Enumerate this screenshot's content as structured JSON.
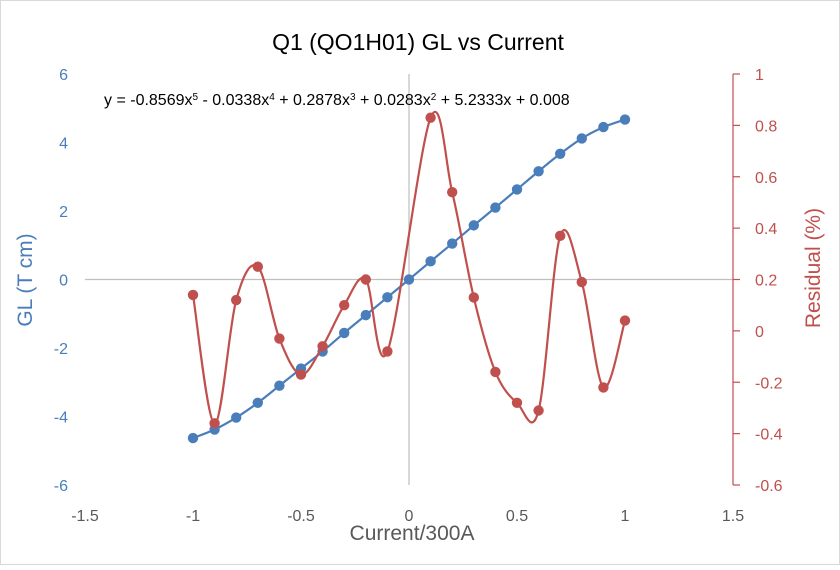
{
  "chart_data": {
    "type": "scatter",
    "title": "Q1 (QO1H01) GL vs Current",
    "xlabel": "Current/300A",
    "ylabel": "GL (T cm)",
    "y2label": "Residual (%)",
    "xlim": [
      -1.5,
      1.5
    ],
    "ylim": [
      -6,
      6
    ],
    "y2lim": [
      -0.6,
      1
    ],
    "x_ticks": [
      "-1.5",
      "-1",
      "-0.5",
      "0",
      "0.5",
      "1",
      "1.5"
    ],
    "y_ticks": [
      "-6",
      "-4",
      "-2",
      "0",
      "2",
      "4",
      "6"
    ],
    "y2_ticks": [
      "-0.6",
      "-0.4",
      "-0.2",
      "0",
      "0.2",
      "0.4",
      "0.6",
      "0.8",
      "1"
    ],
    "grid": false,
    "equation": {
      "prefix": "y = -0.8569x",
      "exp5": "5",
      "part2": " - 0.0338x",
      "exp4": "4",
      "part3": " + 0.2878x",
      "exp3": "3",
      "part4": " + 0.0283x",
      "exp2": "2",
      "part5": " + 5.2333x + 0.008"
    },
    "colors": {
      "gl": "#4a7ebb",
      "residual": "#c0504d",
      "axis": "#bfbfbf",
      "text": "#595959",
      "title": "#000000"
    },
    "series": [
      {
        "axis": "left",
        "color": "#4a7ebb",
        "style": "smooth-line-markers",
        "x": [
          -1,
          -0.9,
          -0.8,
          -0.7,
          -0.6,
          -0.5,
          -0.4,
          -0.3,
          -0.2,
          -0.1,
          0,
          0.1,
          0.2,
          0.3,
          0.4,
          0.5,
          0.6,
          0.7,
          0.8,
          0.9,
          1
        ],
        "y": [
          -4.63,
          -4.38,
          -4.03,
          -3.6,
          -3.1,
          -2.6,
          -2.1,
          -1.56,
          -1.04,
          -0.52,
          0.0,
          0.53,
          1.05,
          1.58,
          2.1,
          2.63,
          3.16,
          3.67,
          4.12,
          4.45,
          4.67
        ]
      },
      {
        "axis": "right",
        "color": "#c0504d",
        "style": "smooth-line-markers",
        "x": [
          -1,
          -0.9,
          -0.8,
          -0.7,
          -0.6,
          -0.5,
          -0.4,
          -0.3,
          -0.2,
          -0.1,
          0.1,
          0.2,
          0.3,
          0.4,
          0.5,
          0.6,
          0.7,
          0.8,
          0.9,
          1
        ],
        "y": [
          0.14,
          -0.36,
          0.12,
          0.25,
          -0.03,
          -0.17,
          -0.06,
          0.1,
          0.2,
          -0.08,
          0.83,
          0.54,
          0.13,
          -0.16,
          -0.28,
          -0.31,
          0.37,
          0.19,
          -0.22,
          0.04
        ]
      }
    ]
  }
}
